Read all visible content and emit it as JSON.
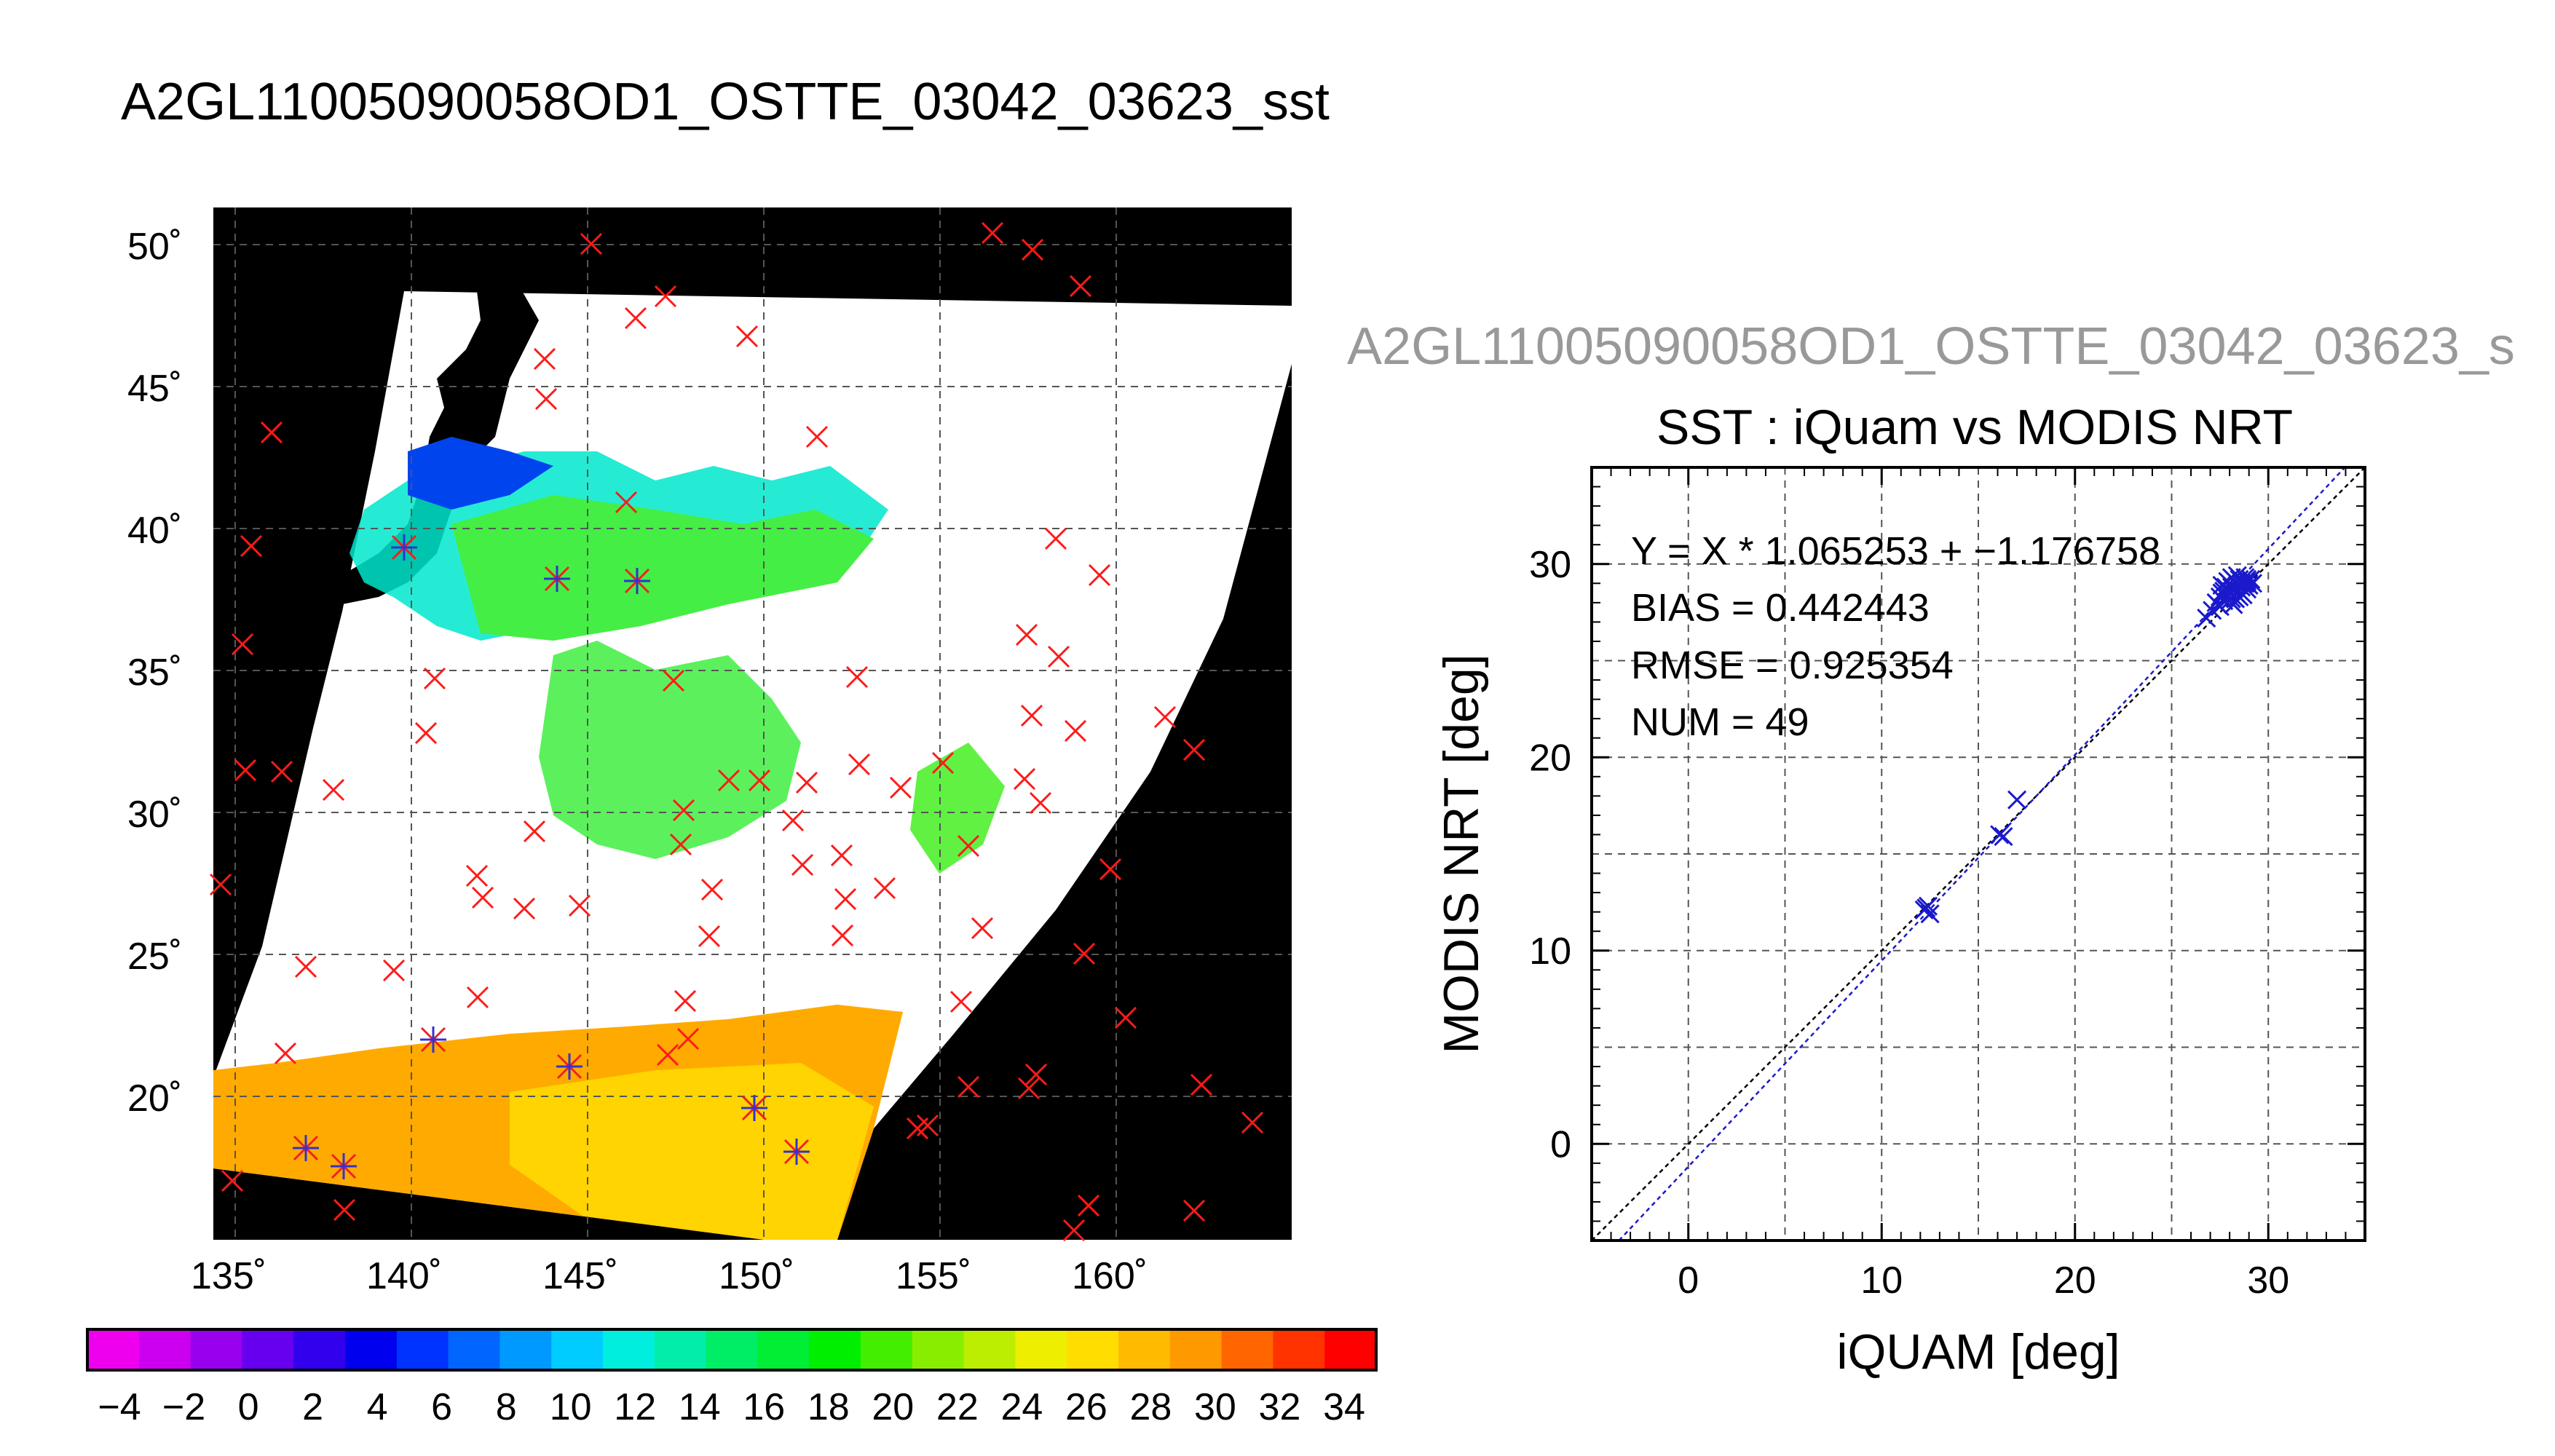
{
  "page_title": "A2GL11005090058OD1_OSTTE_03042_03623_sst",
  "map": {
    "lat_labels": [
      "50˚",
      "45˚",
      "40˚",
      "35˚",
      "30˚",
      "25˚",
      "20˚"
    ],
    "lon_labels": [
      "135˚",
      "140˚",
      "145˚",
      "150˚",
      "155˚",
      "160˚"
    ]
  },
  "colorbar": {
    "labels": [
      "−4",
      "−2",
      "0",
      "2",
      "4",
      "6",
      "8",
      "10",
      "12",
      "14",
      "16",
      "18",
      "20",
      "22",
      "24",
      "26",
      "28",
      "30",
      "32",
      "34"
    ],
    "colors": [
      "#ee00ee",
      "#cc00ee",
      "#9900ee",
      "#6600ee",
      "#3300ee",
      "#0000ee",
      "#0033ff",
      "#0066ff",
      "#0099ff",
      "#00ccff",
      "#00eedd",
      "#00eeaa",
      "#00ee66",
      "#00ee33",
      "#00ee00",
      "#44ee00",
      "#88ee00",
      "#bbee00",
      "#eeee00",
      "#ffdd00",
      "#ffbb00",
      "#ff9900",
      "#ff6600",
      "#ff3300",
      "#ff0000"
    ]
  },
  "scatter_panel": {
    "clipped_title": "A2GL11005090058OD1_OSTTE_03042_03623_s",
    "plot_title": "SST : iQuam vs MODIS NRT",
    "stats": [
      "Y = X * 1.065253 + −1.176758",
      "BIAS = 0.442443",
      "RMSE = 0.925354",
      "NUM = 49"
    ]
  },
  "chart_data": {
    "type": "scatter",
    "title": "SST : iQuam vs MODIS NRT",
    "xlabel": "iQUAM [deg]",
    "ylabel": "MODIS NRT [deg]",
    "xlim": [
      -5,
      35
    ],
    "ylim": [
      -5,
      35
    ],
    "xticks": [
      0,
      10,
      20,
      30
    ],
    "yticks": [
      0,
      10,
      20,
      30
    ],
    "xtick_labels": [
      "0",
      "10",
      "20",
      "30"
    ],
    "ytick_labels": [
      "0",
      "10",
      "20",
      "30"
    ],
    "grid": true,
    "regression": {
      "slope": 1.065253,
      "intercept": -1.176758
    },
    "bias": 0.442443,
    "rmse": 0.925354,
    "num": 49,
    "points": [
      [
        12.2,
        12.1
      ],
      [
        12.4,
        12.3
      ],
      [
        12.5,
        11.9
      ],
      [
        12.3,
        12.2
      ],
      [
        16.1,
        16.0
      ],
      [
        16.3,
        15.9
      ],
      [
        17.0,
        17.8
      ],
      [
        26.8,
        27.2
      ],
      [
        27.1,
        27.6
      ],
      [
        27.3,
        28.0
      ],
      [
        27.5,
        28.3
      ],
      [
        27.6,
        28.5
      ],
      [
        27.7,
        28.1
      ],
      [
        27.8,
        28.8
      ],
      [
        27.9,
        28.4
      ],
      [
        28.0,
        28.6
      ],
      [
        28.0,
        29.0
      ],
      [
        28.1,
        28.2
      ],
      [
        28.2,
        28.7
      ],
      [
        28.3,
        29.1
      ],
      [
        28.4,
        28.9
      ],
      [
        28.5,
        29.2
      ],
      [
        28.6,
        28.8
      ],
      [
        28.7,
        29.0
      ],
      [
        28.8,
        29.3
      ],
      [
        28.9,
        29.1
      ],
      [
        29.0,
        28.9
      ],
      [
        29.1,
        29.2
      ],
      [
        27.4,
        27.9
      ],
      [
        27.6,
        28.9
      ],
      [
        28.1,
        29.3
      ],
      [
        28.3,
        28.5
      ],
      [
        28.5,
        28.6
      ],
      [
        28.7,
        28.4
      ],
      [
        27.9,
        29.1
      ],
      [
        28.2,
        27.9
      ],
      [
        28.4,
        29.4
      ],
      [
        28.6,
        29.0
      ],
      [
        27.8,
        28.3
      ],
      [
        28.0,
        28.1
      ],
      [
        28.9,
        28.7
      ],
      [
        29.2,
        29.0
      ],
      [
        27.5,
        27.8
      ],
      [
        28.1,
        28.8
      ],
      [
        28.3,
        28.2
      ],
      [
        28.8,
        29.0
      ],
      [
        27.7,
        28.6
      ],
      [
        28.5,
        28.3
      ],
      [
        28.9,
        29.2
      ]
    ]
  }
}
